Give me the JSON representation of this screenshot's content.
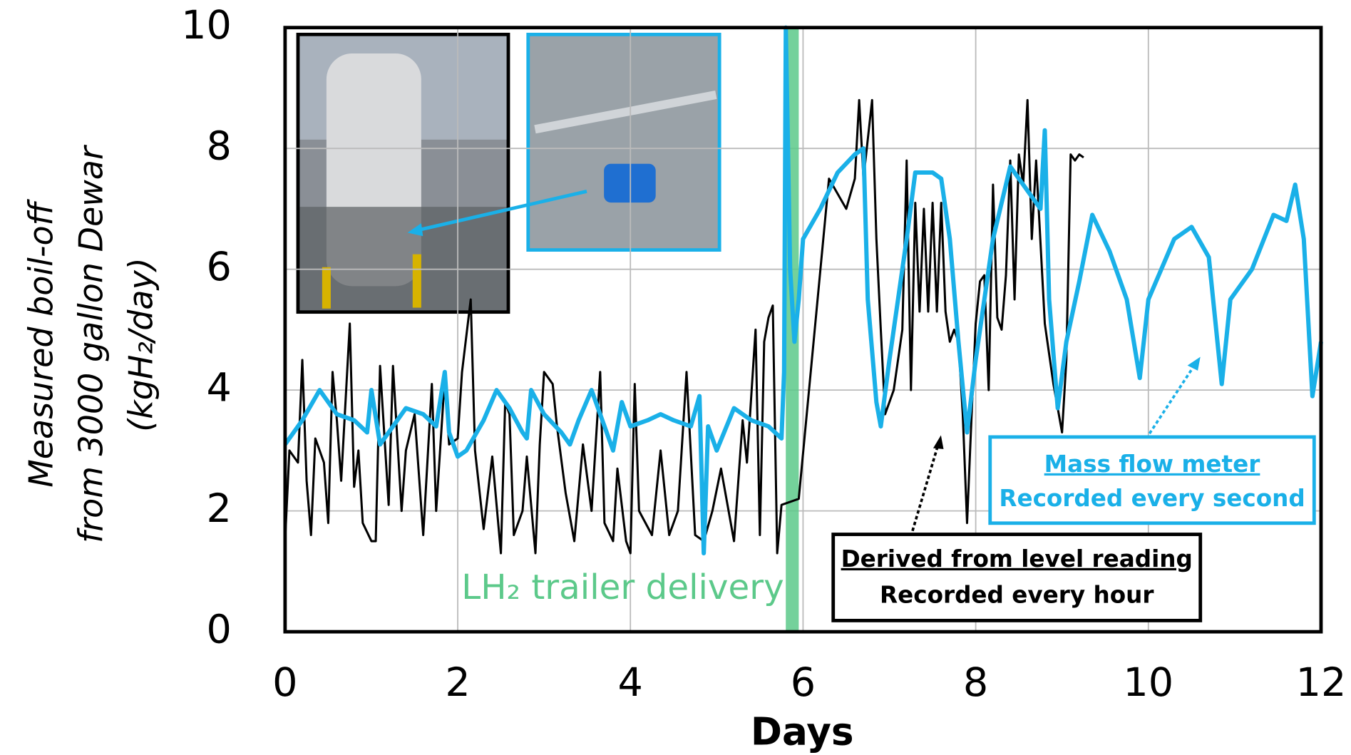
{
  "chart_data": {
    "type": "line",
    "x_label": "Days",
    "y_label": [
      "Measured boil-off",
      "from 3000 gallon Dewar",
      "(kgH₂/day)"
    ],
    "xlim": [
      0,
      12
    ],
    "xticks": [
      0,
      2,
      4,
      6,
      8,
      10,
      12
    ],
    "ylim": [
      0,
      10
    ],
    "yticks": [
      0,
      2,
      4,
      6,
      8,
      10
    ],
    "grid": true,
    "annotation": {
      "text": "LH₂ trailer delivery",
      "x_range": [
        5.8,
        5.95
      ],
      "color": "#5cc98a"
    },
    "series": [
      {
        "name": "Derived from level reading",
        "note": "Recorded every hour",
        "color": "#000000",
        "width": 2.5,
        "x": [
          0,
          0.05,
          0.15,
          0.2,
          0.25,
          0.3,
          0.35,
          0.4,
          0.45,
          0.5,
          0.55,
          0.6,
          0.65,
          0.75,
          0.8,
          0.85,
          0.9,
          1.0,
          1.05,
          1.1,
          1.2,
          1.25,
          1.35,
          1.4,
          1.5,
          1.6,
          1.7,
          1.75,
          1.85,
          1.9,
          2.0,
          2.05,
          2.15,
          2.2,
          2.3,
          2.4,
          2.5,
          2.55,
          2.6,
          2.65,
          2.75,
          2.8,
          2.9,
          2.95,
          3.0,
          3.1,
          3.15,
          3.25,
          3.35,
          3.45,
          3.55,
          3.65,
          3.7,
          3.8,
          3.85,
          3.95,
          4.0,
          4.05,
          4.1,
          4.25,
          4.35,
          4.45,
          4.55,
          4.65,
          4.75,
          4.85,
          4.95,
          5.05,
          5.2,
          5.3,
          5.35,
          5.45,
          5.5,
          5.55,
          5.6,
          5.65,
          5.7,
          5.75,
          5.95,
          6.3,
          6.5,
          6.6,
          6.65,
          6.7,
          6.8,
          6.85,
          6.9,
          6.95,
          7.05,
          7.15,
          7.2,
          7.25,
          7.3,
          7.35,
          7.4,
          7.45,
          7.5,
          7.55,
          7.6,
          7.65,
          7.7,
          7.75,
          7.8,
          7.85,
          7.9,
          7.95,
          8.0,
          8.05,
          8.1,
          8.15,
          8.2,
          8.25,
          8.3,
          8.35,
          8.4,
          8.45,
          8.5,
          8.55,
          8.6,
          8.65,
          8.7,
          8.8,
          8.9,
          9.0,
          9.05,
          9.1,
          9.15,
          9.2,
          9.25
        ],
        "values": [
          1.5,
          3.0,
          2.8,
          4.5,
          2.5,
          1.6,
          3.2,
          3.0,
          2.8,
          1.8,
          4.3,
          3.5,
          2.5,
          5.1,
          2.4,
          3.0,
          1.8,
          1.5,
          1.5,
          4.4,
          2.1,
          4.4,
          2.0,
          3.0,
          3.6,
          1.6,
          4.1,
          2.0,
          4.2,
          3.1,
          3.2,
          4.3,
          5.5,
          3.0,
          1.7,
          2.9,
          1.3,
          3.8,
          3.6,
          1.6,
          2.0,
          2.9,
          1.3,
          3.1,
          4.3,
          4.1,
          3.4,
          2.3,
          1.5,
          3.1,
          2.0,
          4.3,
          1.8,
          1.5,
          2.7,
          1.5,
          1.3,
          4.1,
          2.0,
          1.6,
          3.0,
          1.6,
          2.0,
          4.3,
          1.6,
          1.5,
          2.0,
          2.7,
          1.5,
          3.5,
          2.8,
          5.0,
          1.6,
          4.8,
          5.2,
          5.4,
          1.3,
          2.1,
          2.2,
          7.5,
          7.0,
          7.5,
          8.8,
          7.5,
          8.8,
          6.5,
          5.0,
          3.6,
          4.0,
          5.0,
          7.8,
          4.0,
          7.1,
          5.3,
          7.0,
          5.3,
          7.1,
          5.3,
          7.1,
          5.3,
          4.8,
          5.0,
          4.8,
          3.6,
          1.8,
          3.5,
          5.1,
          5.8,
          5.9,
          4.0,
          7.4,
          5.2,
          5.0,
          5.9,
          7.8,
          5.5,
          7.9,
          7.4,
          8.8,
          6.5,
          7.8,
          5.1,
          4.1,
          3.3,
          4.5,
          7.9,
          7.8,
          7.9,
          7.85
        ]
      },
      {
        "name": "Mass flow meter",
        "note": "Recorded every second",
        "color": "#1ab0e8",
        "width": 5,
        "x": [
          0,
          0.2,
          0.4,
          0.6,
          0.8,
          0.95,
          1.0,
          1.1,
          1.2,
          1.4,
          1.6,
          1.75,
          1.85,
          1.9,
          2.0,
          2.1,
          2.3,
          2.45,
          2.6,
          2.75,
          2.8,
          2.85,
          3.0,
          3.2,
          3.3,
          3.4,
          3.55,
          3.65,
          3.8,
          3.9,
          4.0,
          4.2,
          4.35,
          4.5,
          4.7,
          4.8,
          4.85,
          4.9,
          5.0,
          5.2,
          5.4,
          5.6,
          5.75,
          5.78,
          5.8,
          5.85,
          5.9,
          5.95,
          6.0,
          6.2,
          6.4,
          6.6,
          6.7,
          6.75,
          6.85,
          6.9,
          7.0,
          7.2,
          7.3,
          7.5,
          7.6,
          7.7,
          7.8,
          7.9,
          8.0,
          8.2,
          8.4,
          8.6,
          8.75,
          8.8,
          8.85,
          8.95,
          9.05,
          9.2,
          9.35,
          9.55,
          9.75,
          9.9,
          10.0,
          10.3,
          10.5,
          10.7,
          10.85,
          10.95,
          11.2,
          11.45,
          11.6,
          11.7,
          11.8,
          11.9,
          12.0
        ],
        "values": [
          3.1,
          3.5,
          4.0,
          3.6,
          3.5,
          3.3,
          4.0,
          3.1,
          3.3,
          3.7,
          3.6,
          3.4,
          4.3,
          3.3,
          2.9,
          3.0,
          3.5,
          4.0,
          3.7,
          3.3,
          3.2,
          4.0,
          3.6,
          3.3,
          3.1,
          3.5,
          4.0,
          3.6,
          3.0,
          3.8,
          3.4,
          3.5,
          3.6,
          3.5,
          3.4,
          3.9,
          1.3,
          3.4,
          3.0,
          3.7,
          3.5,
          3.4,
          3.2,
          4.3,
          10,
          6.0,
          4.8,
          5.5,
          6.5,
          7.0,
          7.6,
          7.9,
          8.0,
          5.5,
          3.8,
          3.4,
          4.5,
          6.5,
          7.6,
          7.6,
          7.5,
          6.5,
          4.8,
          3.3,
          4.5,
          6.5,
          7.7,
          7.3,
          7.0,
          8.3,
          5.5,
          3.7,
          4.8,
          5.8,
          6.9,
          6.3,
          5.5,
          4.2,
          5.5,
          6.5,
          6.7,
          6.2,
          4.1,
          5.5,
          6.0,
          6.9,
          6.8,
          7.4,
          6.5,
          3.9,
          4.8
        ]
      }
    ]
  }
}
